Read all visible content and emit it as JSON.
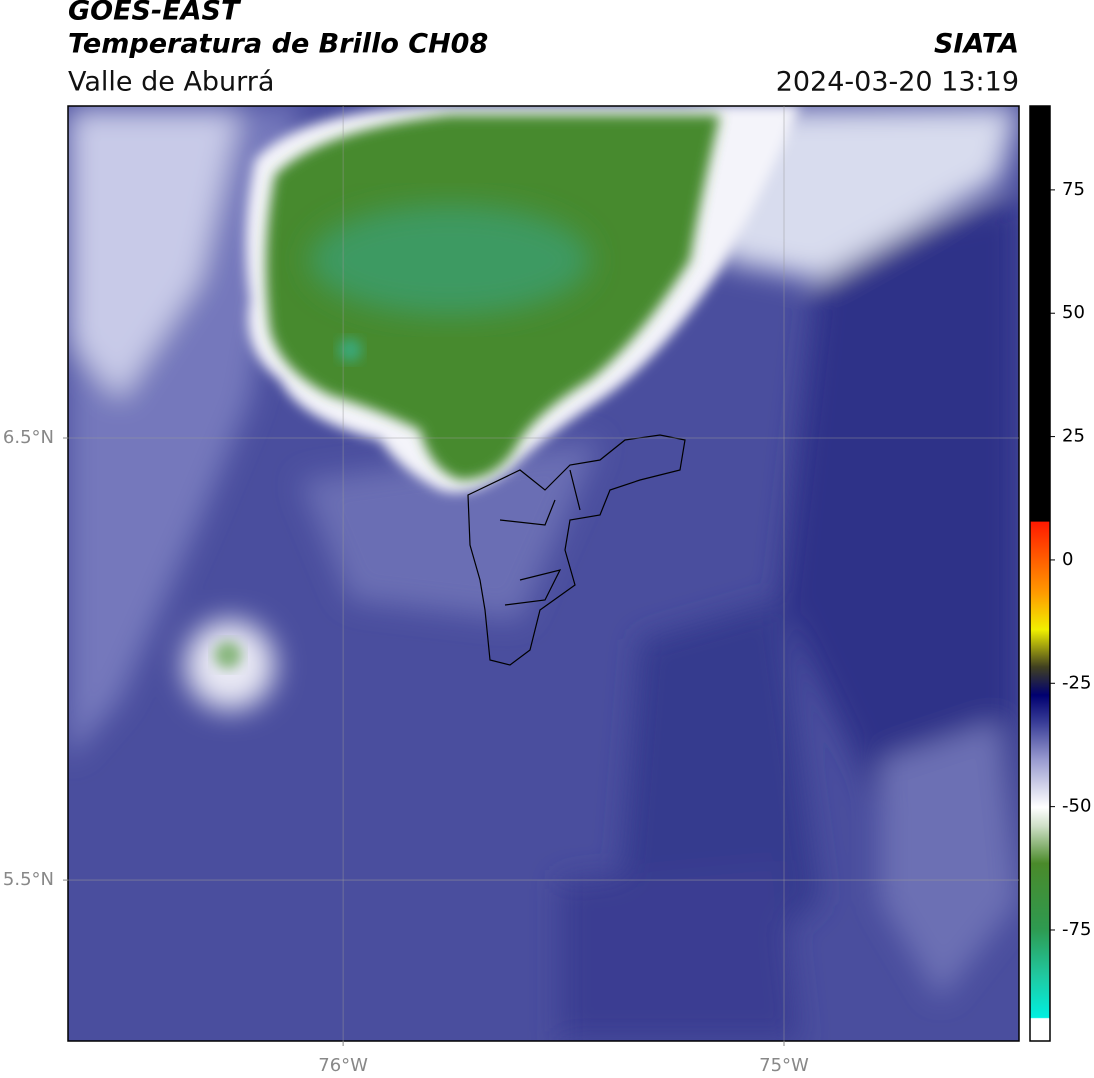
{
  "header": {
    "title": "GOES-EAST",
    "subtitle": "Temperatura de Brillo CH08",
    "region": "Valle de Aburrá",
    "source": "SIATA",
    "datetime": "2024-03-20 13:19"
  },
  "map": {
    "xlim": [
      -76.624,
      -74.467
    ],
    "ylim": [
      5.136,
      7.251
    ],
    "xticks": [
      {
        "value": -76,
        "label": "76°W"
      },
      {
        "value": -75,
        "label": "75°W"
      }
    ],
    "yticks": [
      {
        "value": 6.5,
        "label": "6.5°N"
      },
      {
        "value": 5.5,
        "label": "5.5°N"
      }
    ],
    "grid": true
  },
  "colorbar": {
    "lim": [
      -97.5,
      92
    ],
    "ticks": [
      75,
      50,
      25,
      0,
      -25,
      -50,
      -75
    ]
  }
}
